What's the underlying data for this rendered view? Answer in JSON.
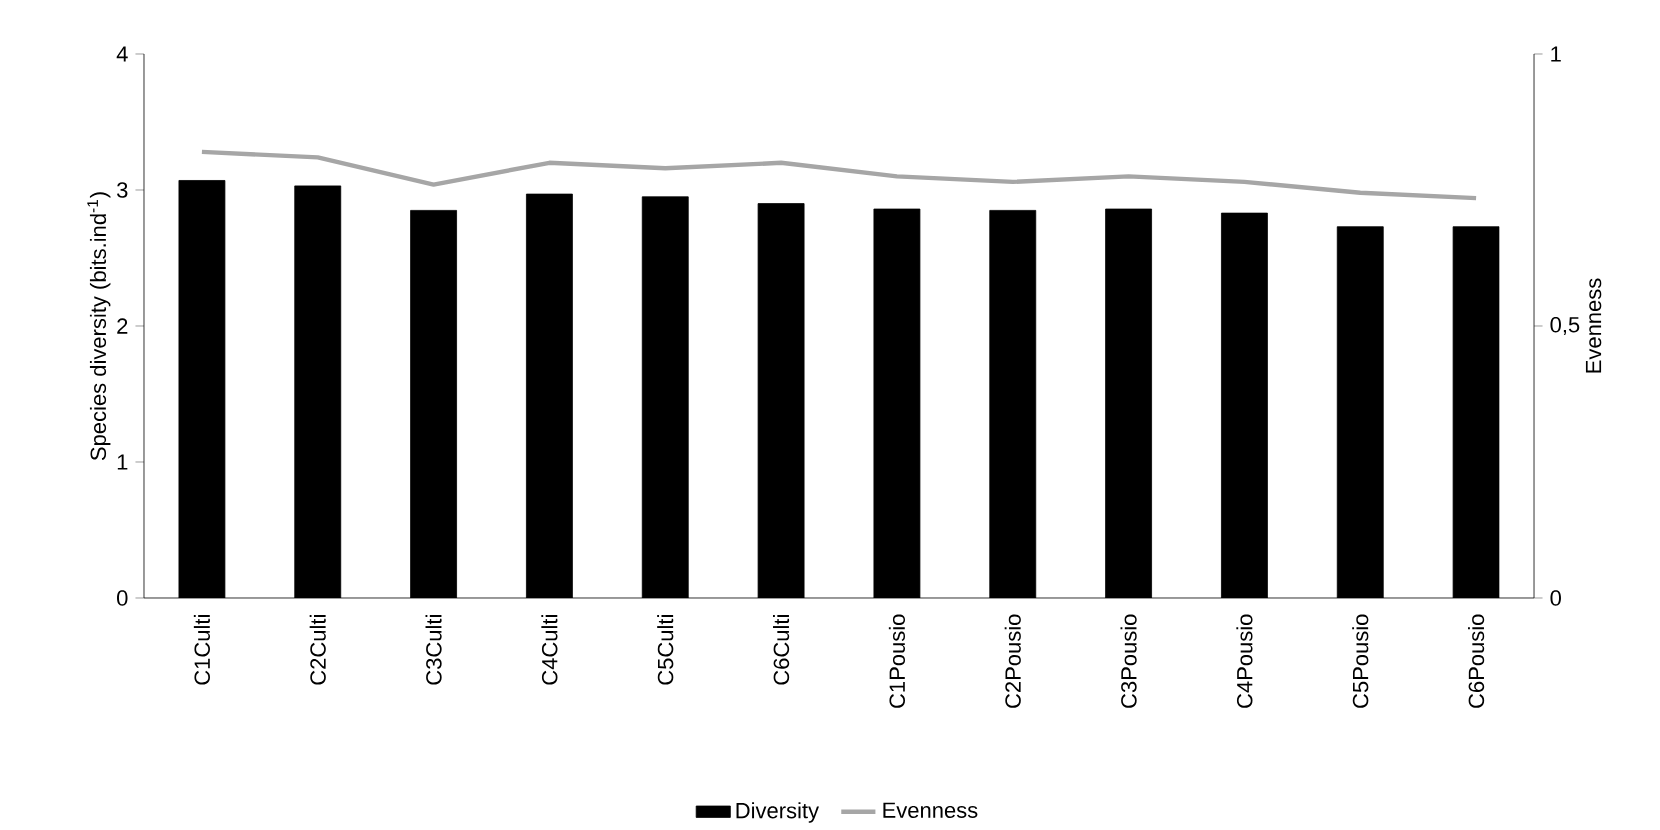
{
  "chart_data": {
    "type": "bar",
    "categories": [
      "C1Culti",
      "C2Culti",
      "C3Culti",
      "C4Culti",
      "C5Culti",
      "C6Culti",
      "C1Pousio",
      "C2Pousio",
      "C3Pousio",
      "C4Pousio",
      "C5Pousio",
      "C6Pousio"
    ],
    "series": [
      {
        "name": "Diversity",
        "color": "#000000",
        "values": [
          3.07,
          3.03,
          2.85,
          2.97,
          2.95,
          2.9,
          2.86,
          2.85,
          2.86,
          2.83,
          2.73,
          2.73
        ]
      },
      {
        "name": "Evenness",
        "type": "line",
        "axis": "y2",
        "color": "#a6a6a6",
        "values": [
          0.82,
          0.81,
          0.76,
          0.8,
          0.79,
          0.8,
          0.775,
          0.765,
          0.775,
          0.765,
          0.745,
          0.735
        ]
      }
    ],
    "ylabel": "Species diversity (bits.ind$^{-1}$)",
    "y2label": "Evenness",
    "ylim": [
      0,
      4
    ],
    "yticks": [
      0,
      1,
      2,
      3,
      4
    ],
    "y2lim": [
      0,
      1
    ],
    "y2ticks": [
      0,
      {
        "value": 0.5,
        "label": "0,5"
      },
      1
    ],
    "legend": "bottom",
    "grid": false,
    "marker": "none",
    "line_style": "solid"
  }
}
